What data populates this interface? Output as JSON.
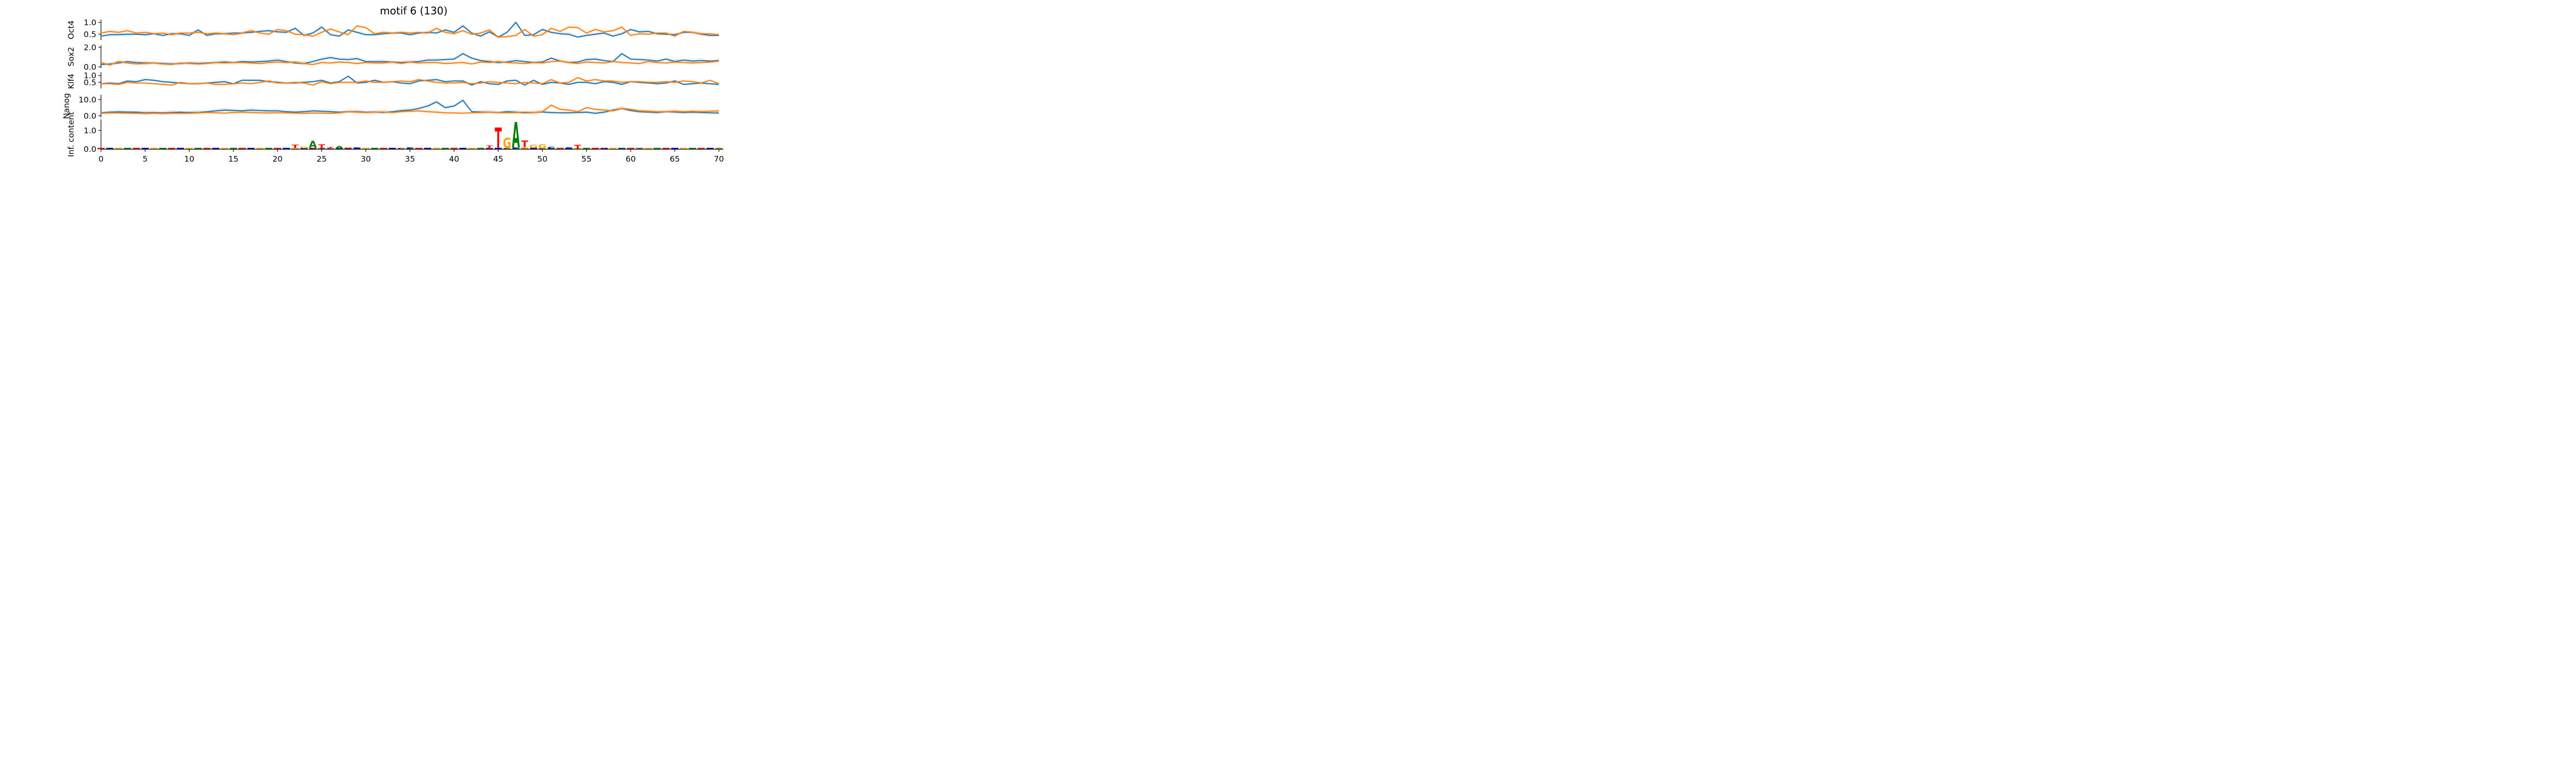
{
  "chart_data": {
    "type": "line",
    "title": "motif 6 (130)",
    "colors": {
      "series_a": "#1f77b4",
      "series_b": "#ff7f0e",
      "band_a": "#1f77b4",
      "band_b": "#ff7f0e"
    },
    "x_ticks": [
      0,
      5,
      10,
      15,
      20,
      25,
      30,
      35,
      40,
      45,
      50,
      55,
      60,
      65,
      70
    ],
    "x_tick_labels": [
      "0",
      "5",
      "10",
      "15",
      "20",
      "25",
      "30",
      "35",
      "40",
      "45",
      "50",
      "55",
      "60",
      "65",
      "70"
    ],
    "xlim": [
      0,
      70.5
    ],
    "panels": [
      {
        "ylabel": "Oct4",
        "ylim": [
          0.25,
          1.12
        ],
        "yticks": [
          0.5,
          1.0
        ],
        "ytick_labels": [
          "0.5",
          "1.0"
        ],
        "series": [
          {
            "values": [
              0.42,
              0.48,
              0.48,
              0.5,
              0.5,
              0.48,
              0.52,
              0.45,
              0.52,
              0.52,
              0.45,
              0.68,
              0.45,
              0.52,
              0.52,
              0.55,
              0.55,
              0.58,
              0.62,
              0.65,
              0.6,
              0.58,
              0.75,
              0.45,
              0.55,
              0.8,
              0.48,
              0.42,
              0.68,
              0.58,
              0.48,
              0.48,
              0.52,
              0.55,
              0.55,
              0.48,
              0.55,
              0.58,
              0.55,
              0.68,
              0.58,
              0.85,
              0.55,
              0.42,
              0.6,
              0.38,
              0.58,
              1.0,
              0.45,
              0.48,
              0.7,
              0.58,
              0.52,
              0.5,
              0.38,
              0.45,
              0.5,
              0.55,
              0.42,
              0.52,
              0.7,
              0.6,
              0.62,
              0.52,
              0.5,
              0.48,
              0.58,
              0.58,
              0.5,
              0.45,
              0.45
            ]
          },
          {
            "values": [
              0.55,
              0.62,
              0.58,
              0.65,
              0.55,
              0.58,
              0.52,
              0.55,
              0.48,
              0.55,
              0.55,
              0.58,
              0.52,
              0.55,
              0.52,
              0.48,
              0.55,
              0.65,
              0.55,
              0.5,
              0.7,
              0.65,
              0.5,
              0.48,
              0.42,
              0.58,
              0.72,
              0.6,
              0.48,
              0.85,
              0.78,
              0.52,
              0.58,
              0.55,
              0.58,
              0.55,
              0.58,
              0.55,
              0.75,
              0.58,
              0.52,
              0.65,
              0.5,
              0.55,
              0.68,
              0.38,
              0.4,
              0.45,
              0.7,
              0.42,
              0.48,
              0.75,
              0.62,
              0.8,
              0.78,
              0.55,
              0.7,
              0.6,
              0.65,
              0.8,
              0.45,
              0.52,
              0.5,
              0.55,
              0.55,
              0.42,
              0.62,
              0.58,
              0.52,
              0.52,
              0.48
            ]
          }
        ]
      },
      {
        "ylabel": "Sox2",
        "ylim": [
          -0.1,
          2.2
        ],
        "yticks": [
          0.0,
          2.0
        ],
        "ytick_labels": [
          "0.0",
          "2.0"
        ],
        "series": [
          {
            "values": [
              0.25,
              0.3,
              0.4,
              0.55,
              0.45,
              0.4,
              0.4,
              0.35,
              0.3,
              0.35,
              0.4,
              0.35,
              0.4,
              0.45,
              0.5,
              0.45,
              0.55,
              0.5,
              0.55,
              0.6,
              0.7,
              0.55,
              0.4,
              0.35,
              0.55,
              0.8,
              0.95,
              0.8,
              0.75,
              0.85,
              0.55,
              0.55,
              0.55,
              0.5,
              0.45,
              0.5,
              0.55,
              0.7,
              0.7,
              0.75,
              0.8,
              1.35,
              0.9,
              0.65,
              0.55,
              0.45,
              0.5,
              0.65,
              0.55,
              0.45,
              0.5,
              0.9,
              0.6,
              0.45,
              0.5,
              0.75,
              0.8,
              0.65,
              0.55,
              1.35,
              0.8,
              0.75,
              0.7,
              0.6,
              0.8,
              0.55,
              0.7,
              0.6,
              0.65,
              0.6,
              0.65
            ]
          },
          {
            "values": [
              0.45,
              0.2,
              0.55,
              0.4,
              0.3,
              0.35,
              0.4,
              0.3,
              0.25,
              0.4,
              0.35,
              0.3,
              0.35,
              0.45,
              0.4,
              0.45,
              0.45,
              0.4,
              0.35,
              0.45,
              0.5,
              0.45,
              0.5,
              0.35,
              0.25,
              0.45,
              0.4,
              0.5,
              0.45,
              0.35,
              0.45,
              0.4,
              0.4,
              0.5,
              0.35,
              0.5,
              0.4,
              0.45,
              0.45,
              0.35,
              0.4,
              0.45,
              0.3,
              0.5,
              0.45,
              0.55,
              0.45,
              0.4,
              0.35,
              0.45,
              0.4,
              0.55,
              0.6,
              0.45,
              0.35,
              0.5,
              0.45,
              0.4,
              0.55,
              0.45,
              0.4,
              0.35,
              0.55,
              0.45,
              0.4,
              0.5,
              0.45,
              0.4,
              0.45,
              0.5,
              0.6
            ]
          }
        ]
      },
      {
        "ylabel": "Klf4",
        "ylim": [
          0.05,
          1.25
        ],
        "yticks": [
          0.5,
          1.0
        ],
        "ytick_labels": [
          "0.5",
          "1.0"
        ],
        "series": [
          {
            "values": [
              0.4,
              0.45,
              0.4,
              0.6,
              0.55,
              0.7,
              0.65,
              0.55,
              0.5,
              0.45,
              0.4,
              0.4,
              0.45,
              0.5,
              0.55,
              0.4,
              0.65,
              0.65,
              0.65,
              0.55,
              0.5,
              0.45,
              0.45,
              0.5,
              0.55,
              0.65,
              0.45,
              0.55,
              0.95,
              0.45,
              0.5,
              0.65,
              0.5,
              0.55,
              0.45,
              0.4,
              0.6,
              0.65,
              0.7,
              0.55,
              0.6,
              0.6,
              0.3,
              0.55,
              0.4,
              0.35,
              0.6,
              0.65,
              0.3,
              0.65,
              0.35,
              0.5,
              0.45,
              0.35,
              0.5,
              0.5,
              0.4,
              0.55,
              0.5,
              0.35,
              0.55,
              0.5,
              0.45,
              0.4,
              0.45,
              0.6,
              0.35,
              0.4,
              0.45,
              0.4,
              0.35
            ]
          },
          {
            "values": [
              0.4,
              0.4,
              0.35,
              0.5,
              0.45,
              0.45,
              0.4,
              0.35,
              0.3,
              0.5,
              0.4,
              0.4,
              0.45,
              0.35,
              0.35,
              0.4,
              0.45,
              0.4,
              0.5,
              0.6,
              0.45,
              0.45,
              0.5,
              0.45,
              0.3,
              0.55,
              0.4,
              0.5,
              0.5,
              0.5,
              0.6,
              0.5,
              0.5,
              0.55,
              0.6,
              0.55,
              0.7,
              0.6,
              0.5,
              0.45,
              0.45,
              0.5,
              0.4,
              0.45,
              0.55,
              0.5,
              0.45,
              0.4,
              0.5,
              0.45,
              0.4,
              0.7,
              0.45,
              0.5,
              0.85,
              0.6,
              0.7,
              0.6,
              0.6,
              0.5,
              0.55,
              0.55,
              0.5,
              0.5,
              0.55,
              0.5,
              0.6,
              0.55,
              0.45,
              0.65,
              0.4
            ]
          }
        ]
      },
      {
        "ylabel": "Nanog",
        "ylim": [
          -1.0,
          13.0
        ],
        "yticks": [
          0.0,
          10.0
        ],
        "ytick_labels": [
          "0.0",
          "10.0"
        ],
        "series": [
          {
            "values": [
              1.8,
              2.2,
              2.4,
              2.3,
              2.2,
              1.8,
              2.0,
              1.8,
              2.0,
              2.2,
              2.0,
              2.0,
              2.5,
              3.0,
              3.5,
              3.3,
              3.0,
              3.5,
              3.2,
              3.0,
              3.0,
              2.5,
              2.2,
              2.5,
              3.0,
              2.8,
              2.5,
              2.2,
              2.5,
              2.5,
              2.2,
              2.3,
              2.0,
              2.5,
              3.2,
              3.5,
              4.5,
              6.0,
              8.5,
              5.0,
              6.0,
              9.5,
              2.5,
              2.3,
              2.2,
              2.0,
              2.5,
              2.2,
              1.8,
              2.0,
              2.3,
              2.0,
              1.8,
              1.8,
              2.0,
              2.2,
              1.5,
              2.2,
              3.5,
              4.5,
              3.2,
              2.5,
              2.2,
              2.0,
              2.5,
              2.3,
              2.0,
              2.2,
              2.0,
              1.8,
              1.7
            ]
          },
          {
            "values": [
              1.5,
              1.8,
              1.7,
              1.6,
              1.5,
              1.4,
              1.5,
              1.4,
              1.5,
              1.5,
              1.5,
              1.8,
              2.0,
              1.8,
              1.6,
              2.0,
              2.2,
              2.0,
              1.8,
              1.7,
              1.8,
              1.8,
              1.6,
              1.5,
              1.7,
              1.6,
              1.5,
              1.8,
              2.5,
              2.2,
              2.0,
              2.2,
              2.3,
              2.0,
              2.5,
              2.8,
              3.0,
              2.5,
              2.2,
              1.8,
              1.7,
              1.6,
              1.8,
              2.0,
              2.2,
              2.0,
              1.8,
              2.0,
              2.2,
              2.0,
              2.5,
              6.5,
              4.0,
              3.5,
              2.5,
              5.0,
              4.0,
              3.5,
              3.0,
              4.5,
              4.0,
              3.0,
              2.8,
              2.5,
              2.5,
              2.8,
              2.5,
              2.8,
              2.5,
              2.8,
              3.0
            ]
          }
        ]
      },
      {
        "ylabel": "Inf. content",
        "ylim": [
          -0.02,
          1.6
        ],
        "yticks": [
          0.0,
          1.0
        ],
        "ytick_labels": [
          "0.0",
          "1.0"
        ],
        "logo_colors": {
          "A": "#008000",
          "C": "#0000cc",
          "G": "#ffa500",
          "T": "#ff0000"
        },
        "logo": [
          {
            "pos": 22,
            "stack": [
              [
                "G",
                0.05
              ],
              [
                "T",
                0.18
              ]
            ]
          },
          {
            "pos": 23,
            "stack": [
              [
                "C",
                0.04
              ],
              [
                "G",
                0.08
              ]
            ]
          },
          {
            "pos": 24,
            "stack": [
              [
                "C",
                0.06
              ],
              [
                "A",
                0.38
              ]
            ]
          },
          {
            "pos": 25,
            "stack": [
              [
                "G",
                0.05
              ],
              [
                "T",
                0.2
              ]
            ]
          },
          {
            "pos": 26,
            "stack": [
              [
                "C",
                0.05
              ],
              [
                "T",
                0.06
              ]
            ]
          },
          {
            "pos": 27,
            "stack": [
              [
                "C",
                0.04
              ],
              [
                "A",
                0.12
              ]
            ]
          },
          {
            "pos": 28,
            "stack": [
              [
                "C",
                0.05
              ],
              [
                "G",
                0.04
              ]
            ]
          },
          {
            "pos": 29,
            "stack": [
              [
                "C",
                0.08
              ]
            ]
          },
          {
            "pos": 34,
            "stack": [
              [
                "C",
                0.06
              ]
            ]
          },
          {
            "pos": 35,
            "stack": [
              [
                "C",
                0.08
              ]
            ]
          },
          {
            "pos": 44,
            "stack": [
              [
                "C",
                0.06
              ],
              [
                "T",
                0.12
              ]
            ]
          },
          {
            "pos": 45,
            "stack": [
              [
                "C",
                0.05
              ],
              [
                "T",
                1.1
              ]
            ]
          },
          {
            "pos": 46,
            "stack": [
              [
                "C",
                0.06
              ],
              [
                "G",
                0.55
              ]
            ]
          },
          {
            "pos": 47,
            "stack": [
              [
                "C",
                0.08
              ],
              [
                "A",
                1.38
              ]
            ]
          },
          {
            "pos": 48,
            "stack": [
              [
                "G",
                0.1
              ],
              [
                "T",
                0.35
              ]
            ]
          },
          {
            "pos": 49,
            "stack": [
              [
                "C",
                0.05
              ],
              [
                "G",
                0.18
              ]
            ]
          },
          {
            "pos": 50,
            "stack": [
              [
                "C",
                0.04
              ],
              [
                "G",
                0.22
              ]
            ]
          },
          {
            "pos": 51,
            "stack": [
              [
                "C",
                0.12
              ]
            ]
          },
          {
            "pos": 53,
            "stack": [
              [
                "C",
                0.08
              ]
            ]
          },
          {
            "pos": 54,
            "stack": [
              [
                "T",
                0.22
              ]
            ]
          },
          {
            "pos": 57,
            "stack": [
              [
                "T",
                0.06
              ]
            ]
          },
          {
            "pos": 59,
            "stack": [
              [
                "C",
                0.05
              ]
            ]
          },
          {
            "pos": 61,
            "stack": [
              [
                "G",
                0.06
              ]
            ]
          },
          {
            "pos": 70,
            "stack": [
              [
                "A",
                0.05
              ]
            ]
          }
        ]
      }
    ]
  }
}
